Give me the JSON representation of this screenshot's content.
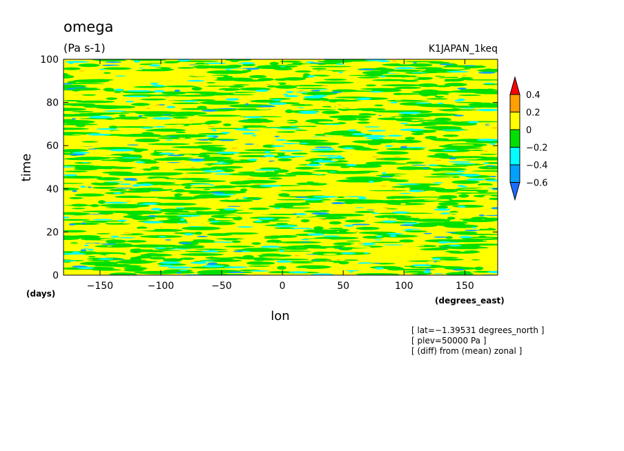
{
  "chart_data": {
    "type": "heatmap",
    "title": "omega",
    "units": "(Pa s-1)",
    "dataset": "K1JAPAN_1keq",
    "xlabel": "lon",
    "ylabel": "time",
    "x_unit": "(degrees_east)",
    "y_unit": "(days)",
    "xlim": [
      -180,
      177
    ],
    "ylim": [
      0,
      100
    ],
    "x_ticks": [
      -150,
      -100,
      -50,
      0,
      50,
      100,
      150
    ],
    "y_ticks": [
      0,
      20,
      40,
      60,
      80,
      100
    ],
    "x_tick_labels": [
      "−150",
      "−100",
      "−50",
      "0",
      "50",
      "100",
      "150"
    ],
    "y_tick_labels": [
      "0",
      "20",
      "40",
      "60",
      "80",
      "100"
    ],
    "colorbar": {
      "levels": [
        -0.6,
        -0.4,
        -0.2,
        0,
        0.2,
        0.4
      ],
      "level_labels": [
        "−0.6",
        "−0.4",
        "−0.2",
        "0",
        "0.2",
        "0.4"
      ],
      "colors": [
        "#1e6cff",
        "#00a0ff",
        "#00ffff",
        "#00e000",
        "#ffff00",
        "#ffa000",
        "#ff0000"
      ]
    },
    "annotations": [
      "[ lat=−1.39531 degrees_north ]",
      "[ plev=50000 Pa ]",
      "[ (diff) from (mean) zonal ]"
    ],
    "field_character": "zonally banded noise, mostly 0 to 0.2 (yellow) with streaks of −0.2 to 0 (green), occasional −0.4 (cyan/blue) and rare 0.2 to 0.4 (orange)"
  }
}
